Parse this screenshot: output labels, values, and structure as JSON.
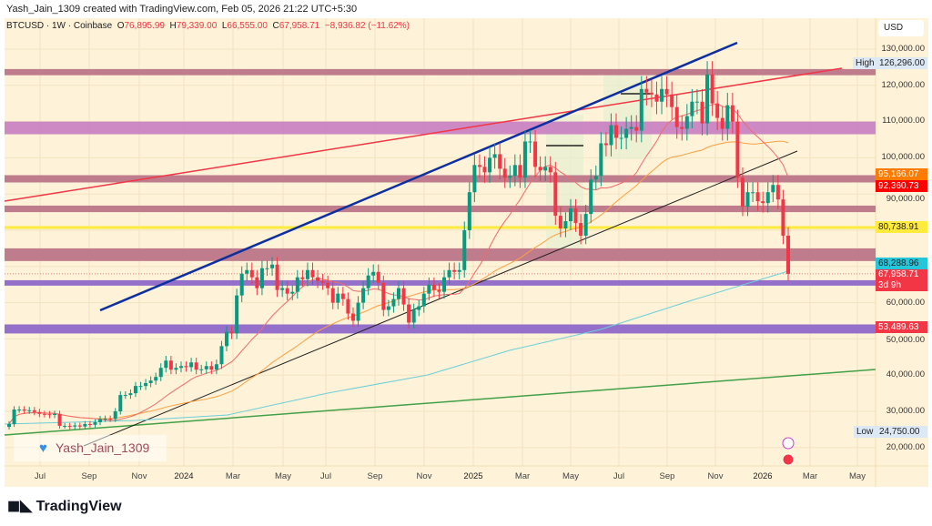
{
  "credit": "Yash_Jain_1309 created with TradingView.com, Feb 05, 2026 21:22 UTC+5:30",
  "legend": {
    "symbol": "BTCUSD · 1W · Coinbase",
    "o_label": "O",
    "o": "76,895.99",
    "h_label": "H",
    "h": "79,339.00",
    "l_label": "L",
    "l": "66,555.00",
    "c_label": "C",
    "c": "67,958.71",
    "change": "−8,936.82 (−11.62%)"
  },
  "currency_button": "USD",
  "price_axis": [
    "130,000.00",
    "120,000.00",
    "110,000.00",
    "100,000.00",
    "90,000.00",
    "60,000.00",
    "50,000.00",
    "40,000.00",
    "30,000.00",
    "20,000.00"
  ],
  "price_tags": {
    "high_label": "High",
    "high": "126,296.00",
    "low_label": "Low",
    "low": "24,750.00",
    "ma50": "95,166.07",
    "ma20": "92,360.73",
    "level_yellow": "80,738.91",
    "ma200": "68,288.96",
    "last": "67,958.71",
    "countdown": "3d 9h",
    "level_support": "53,489.63"
  },
  "date_axis": [
    "Jul",
    "Sep",
    "Nov",
    "2024",
    "Mar",
    "May",
    "Jul",
    "Sep",
    "Nov",
    "2025",
    "Mar",
    "May",
    "Jul",
    "Sep",
    "Nov",
    "2026",
    "Mar",
    "May"
  ],
  "watermark": "Yash_Jain_1309",
  "brand": "TradingView",
  "colors": {
    "up": "#089981",
    "down": "#f23645",
    "background": "#fef2d8",
    "zone": "#b86f85",
    "zone_purple": "#c77dc2",
    "support_purple": "#8a62c9",
    "yellow": "#ffeb3b",
    "trend_blue": "#0d2fa0",
    "trend_red": "#f23645",
    "trend_black": "#222222",
    "trend_green": "#43a047"
  },
  "chart_data": {
    "type": "candlestick",
    "interval": "1W",
    "ylim": [
      16000,
      134000
    ],
    "scale": "linear",
    "closes_k": [
      26.5,
      30.5,
      30.5,
      30.2,
      30.3,
      29.8,
      29.3,
      29.2,
      29.0,
      29.3,
      26.0,
      26.0,
      25.8,
      26.1,
      25.8,
      26.5,
      26.3,
      27.0,
      27.9,
      28.0,
      27.9,
      30.0,
      34.5,
      34.5,
      35.0,
      37.0,
      37.0,
      37.8,
      38.5,
      39.5,
      42.0,
      44.0,
      41.5,
      42.0,
      42.5,
      42.2,
      43.5,
      41.5,
      41.6,
      42.5,
      41.5,
      43.0,
      48.0,
      52.0,
      51.5,
      62.0,
      68.0,
      69.0,
      67.0,
      64.0,
      69.5,
      69.5,
      70.5,
      63.5,
      64.0,
      62.5,
      63.0,
      67.0,
      66.5,
      69.0,
      67.0,
      66.0,
      65.5,
      64.0,
      60.0,
      62.5,
      61.0,
      57.0,
      55.0,
      60.0,
      64.0,
      67.5,
      68.5,
      65.5,
      58.0,
      59.0,
      61.0,
      64.0,
      59.5,
      54.5,
      58.0,
      59.0,
      62.5,
      65.0,
      63.5,
      63.0,
      67.0,
      69.0,
      68.5,
      69.0,
      80.0,
      90.5,
      98.0,
      97.5,
      96.0,
      100.0,
      101.0,
      97.0,
      94.5,
      95.0,
      98.0,
      94.5,
      104.5,
      104.5,
      97.5,
      96.5,
      97.5,
      96.0,
      84.0,
      80.5,
      82.5,
      86.0,
      82.0,
      78.5,
      84.5,
      94.0,
      95.0,
      104.0,
      103.5,
      109.0,
      105.5,
      105.5,
      108.0,
      108.5,
      107.5,
      119.0,
      118.0,
      117.5,
      115.5,
      119.0,
      117.5,
      114.0,
      108.5,
      108.0,
      111.5,
      115.5,
      115.5,
      109.5,
      123.0,
      115.0,
      111.0,
      108.0,
      114.5,
      110.0,
      94.5,
      86.5,
      90.5,
      90.5,
      88.0,
      87.5,
      90.5,
      92.5,
      88.5,
      78.5,
      67.96
    ],
    "zones": [
      [
        122800,
        124500
      ],
      [
        106500,
        110000
      ],
      [
        93200,
        95200
      ],
      [
        85000,
        86800
      ],
      [
        71500,
        75000
      ]
    ],
    "purple_supports": [
      [
        64700,
        66200
      ],
      [
        51500,
        54000
      ]
    ],
    "levels": {
      "yellow": 80738.91,
      "last": 67958.71
    }
  }
}
